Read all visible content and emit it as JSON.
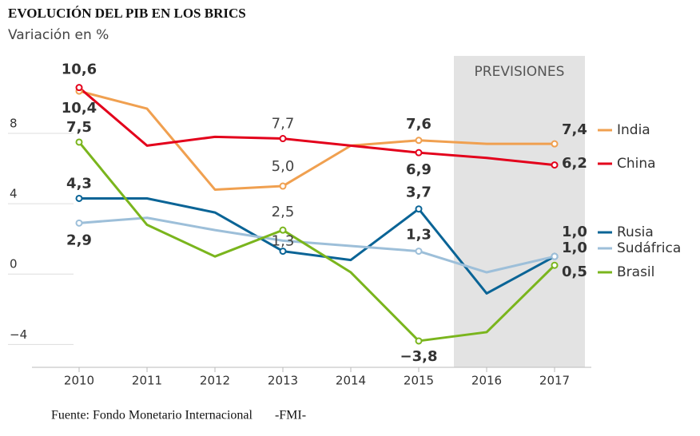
{
  "chart_data": {
    "type": "line",
    "title": "EVOLUCIÓN DEL PIB EN LOS BRICS",
    "subtitle": "Variación en %",
    "annotation": "PREVISIONES",
    "source": "Fuente: Fondo Monetario Internacional       -FMI-",
    "categories": [
      "2010",
      "2011",
      "2012",
      "2013",
      "2014",
      "2015",
      "2016",
      "2017"
    ],
    "ylim": [
      -5.3,
      12.4
    ],
    "yticks": [
      {
        "value": -4,
        "label": "−4"
      },
      0,
      4,
      8
    ],
    "grid": true,
    "series": [
      {
        "name": "India",
        "color": "#f0a050",
        "values": [
          10.4,
          9.4,
          4.8,
          5.0,
          7.3,
          7.6,
          7.4,
          7.4
        ],
        "value_labels": [
          "10,4",
          null,
          null,
          "5,0",
          null,
          "7,6",
          null,
          "7,4"
        ]
      },
      {
        "name": "China",
        "color": "#e3001b",
        "values": [
          10.6,
          7.3,
          7.8,
          7.7,
          7.3,
          6.9,
          6.6,
          6.2
        ],
        "value_labels": [
          "10,6",
          null,
          null,
          "7,7",
          null,
          "6,9",
          null,
          "6,2"
        ]
      },
      {
        "name": "Rusia",
        "color": "#0a6496",
        "values": [
          4.3,
          4.3,
          3.5,
          1.3,
          0.8,
          3.7,
          -1.1,
          1.0
        ],
        "value_labels": [
          "4,3",
          null,
          null,
          "1,3",
          null,
          "3,7",
          null,
          "1,0"
        ]
      },
      {
        "name": "Sudáfrica",
        "color": "#9dbfd9",
        "values": [
          2.9,
          3.2,
          2.5,
          1.9,
          1.6,
          1.3,
          0.1,
          1.0
        ],
        "value_labels": [
          "2,9",
          null,
          null,
          null,
          null,
          "1,3",
          null,
          "1,0"
        ]
      },
      {
        "name": "Brasil",
        "color": "#7ab51d",
        "values": [
          7.5,
          2.8,
          1.0,
          2.5,
          0.1,
          -3.8,
          -3.3,
          0.5
        ],
        "value_labels": [
          "7,5",
          null,
          null,
          "2,5",
          null,
          "−3,8",
          null,
          "0,5"
        ]
      }
    ]
  }
}
